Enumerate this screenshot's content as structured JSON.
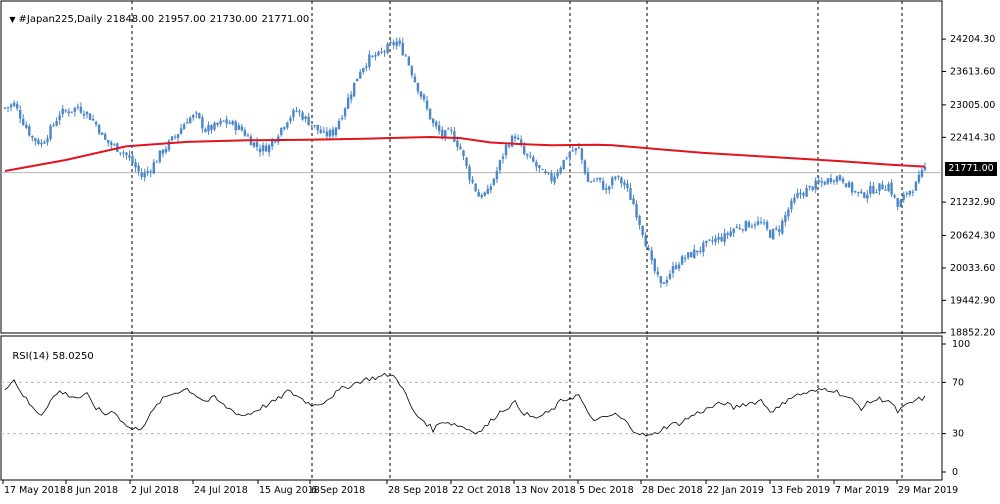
{
  "header": {
    "arrow_icon": "triangle-down-icon",
    "symbol": "#Japan225,Daily",
    "ohlc": [
      "21848.00",
      "21957.00",
      "21730.00",
      "21771.00"
    ]
  },
  "rsi_header": {
    "name": "RSI(14)",
    "value": "58.0250"
  },
  "current_price_label": "21771.00",
  "colors": {
    "candle": "#4a86c8",
    "ma": "#e0141e",
    "rsi_line": "#000000",
    "grid": "#000000",
    "price_tag_bg": "#000000"
  },
  "chart_data": [
    {
      "type": "candlestick",
      "title": "#Japan225,Daily",
      "ohlc_last": {
        "open": 21848.0,
        "high": 21957.0,
        "low": 21730.0,
        "close": 21771.0
      },
      "x_tick_labels": [
        "17 May 2018",
        "8 Jun 2018",
        "2 Jul 2018",
        "24 Jul 2018",
        "15 Aug 2018",
        "6 Sep 2018",
        "28 Sep 2018",
        "22 Oct 2018",
        "13 Nov 2018",
        "5 Dec 2018",
        "28 Dec 2018",
        "22 Jan 2019",
        "13 Feb 2019",
        "7 Mar 2019",
        "29 Mar 2019"
      ],
      "y_tick_labels": [
        "24204.30",
        "23613.60",
        "23005.00",
        "22414.30",
        "21232.90",
        "20624.30",
        "20033.60",
        "19442.90",
        "18852.20"
      ],
      "ylim": [
        18800,
        24400
      ],
      "grid": "vertical dashed",
      "price_series": [
        [
          0,
          22950
        ],
        [
          3,
          23020
        ],
        [
          6,
          22700
        ],
        [
          9,
          22400
        ],
        [
          12,
          22300
        ],
        [
          15,
          22550
        ],
        [
          18,
          22850
        ],
        [
          21,
          22900
        ],
        [
          24,
          22960
        ],
        [
          27,
          22850
        ],
        [
          30,
          22650
        ],
        [
          33,
          22350
        ],
        [
          36,
          22250
        ],
        [
          39,
          22150
        ],
        [
          42,
          21950
        ],
        [
          45,
          21700
        ],
        [
          48,
          21850
        ],
        [
          51,
          22100
        ],
        [
          54,
          22300
        ],
        [
          57,
          22500
        ],
        [
          60,
          22750
        ],
        [
          63,
          22800
        ],
        [
          66,
          22550
        ],
        [
          69,
          22600
        ],
        [
          72,
          22700
        ],
        [
          75,
          22650
        ],
        [
          78,
          22550
        ],
        [
          81,
          22350
        ],
        [
          84,
          22200
        ],
        [
          87,
          22250
        ],
        [
          90,
          22500
        ],
        [
          93,
          22750
        ],
        [
          96,
          22900
        ],
        [
          99,
          22750
        ],
        [
          102,
          22600
        ],
        [
          105,
          22450
        ],
        [
          108,
          22500
        ],
        [
          111,
          22850
        ],
        [
          114,
          23250
        ],
        [
          117,
          23650
        ],
        [
          120,
          23850
        ],
        [
          123,
          23900
        ],
        [
          126,
          24050
        ],
        [
          129,
          24150
        ],
        [
          132,
          23900
        ],
        [
          135,
          23450
        ],
        [
          138,
          23050
        ],
        [
          141,
          22650
        ],
        [
          144,
          22450
        ],
        [
          147,
          22500
        ],
        [
          150,
          22200
        ],
        [
          153,
          21700
        ],
        [
          156,
          21350
        ],
        [
          159,
          21400
        ],
        [
          162,
          21800
        ],
        [
          165,
          22250
        ],
        [
          168,
          22450
        ],
        [
          171,
          22100
        ],
        [
          174,
          21950
        ],
        [
          177,
          21750
        ],
        [
          180,
          21650
        ],
        [
          183,
          21900
        ],
        [
          186,
          22150
        ],
        [
          189,
          22200
        ],
        [
          192,
          21600
        ],
        [
          195,
          21650
        ],
        [
          198,
          21450
        ],
        [
          201,
          21700
        ],
        [
          204,
          21550
        ],
        [
          207,
          21200
        ],
        [
          210,
          20700
        ],
        [
          213,
          20100
        ],
        [
          216,
          19700
        ],
        [
          219,
          19950
        ],
        [
          222,
          20150
        ],
        [
          225,
          20250
        ],
        [
          228,
          20350
        ],
        [
          231,
          20450
        ],
        [
          234,
          20550
        ],
        [
          237,
          20600
        ],
        [
          240,
          20750
        ],
        [
          243,
          20800
        ],
        [
          246,
          20850
        ],
        [
          249,
          20850
        ],
        [
          252,
          20650
        ],
        [
          255,
          20750
        ],
        [
          258,
          21100
        ],
        [
          261,
          21350
        ],
        [
          264,
          21450
        ],
        [
          267,
          21550
        ],
        [
          270,
          21600
        ],
        [
          273,
          21700
        ],
        [
          276,
          21650
        ],
        [
          279,
          21450
        ],
        [
          282,
          21350
        ],
        [
          285,
          21450
        ],
        [
          288,
          21500
        ],
        [
          291,
          21550
        ],
        [
          294,
          21150
        ],
        [
          297,
          21400
        ],
        [
          300,
          21550
        ],
        [
          303,
          21850
        ]
      ],
      "moving_average": [
        [
          0,
          21800
        ],
        [
          20,
          22000
        ],
        [
          40,
          22250
        ],
        [
          60,
          22330
        ],
        [
          80,
          22360
        ],
        [
          100,
          22370
        ],
        [
          120,
          22390
        ],
        [
          140,
          22420
        ],
        [
          150,
          22400
        ],
        [
          160,
          22320
        ],
        [
          170,
          22290
        ],
        [
          180,
          22270
        ],
        [
          195,
          22280
        ],
        [
          200,
          22270
        ],
        [
          215,
          22200
        ],
        [
          230,
          22130
        ],
        [
          245,
          22080
        ],
        [
          260,
          22030
        ],
        [
          275,
          21980
        ],
        [
          290,
          21920
        ],
        [
          303,
          21880
        ]
      ],
      "last_price_line": 21771.0
    },
    {
      "type": "line",
      "title": "RSI(14) 58.0250",
      "series_label": "RSI(14)",
      "current_value": 58.025,
      "y_tick_labels": [
        "100",
        "70",
        "30",
        "0"
      ],
      "ylim": [
        0,
        100
      ],
      "levels": [
        70,
        30
      ],
      "values": [
        [
          0,
          66
        ],
        [
          3,
          72
        ],
        [
          6,
          60
        ],
        [
          9,
          50
        ],
        [
          12,
          45
        ],
        [
          15,
          56
        ],
        [
          18,
          63
        ],
        [
          21,
          60
        ],
        [
          24,
          58
        ],
        [
          27,
          60
        ],
        [
          30,
          50
        ],
        [
          33,
          45
        ],
        [
          36,
          48
        ],
        [
          39,
          38
        ],
        [
          42,
          33
        ],
        [
          45,
          35
        ],
        [
          48,
          45
        ],
        [
          51,
          55
        ],
        [
          54,
          60
        ],
        [
          57,
          63
        ],
        [
          60,
          65
        ],
        [
          63,
          60
        ],
        [
          66,
          55
        ],
        [
          69,
          58
        ],
        [
          72,
          52
        ],
        [
          75,
          48
        ],
        [
          78,
          44
        ],
        [
          81,
          46
        ],
        [
          84,
          50
        ],
        [
          87,
          53
        ],
        [
          90,
          57
        ],
        [
          93,
          63
        ],
        [
          96,
          60
        ],
        [
          99,
          55
        ],
        [
          102,
          52
        ],
        [
          105,
          55
        ],
        [
          108,
          60
        ],
        [
          111,
          65
        ],
        [
          114,
          68
        ],
        [
          117,
          71
        ],
        [
          120,
          73
        ],
        [
          123,
          74
        ],
        [
          126,
          76
        ],
        [
          129,
          74
        ],
        [
          132,
          60
        ],
        [
          135,
          45
        ],
        [
          138,
          40
        ],
        [
          141,
          33
        ],
        [
          144,
          40
        ],
        [
          147,
          38
        ],
        [
          150,
          36
        ],
        [
          153,
          33
        ],
        [
          156,
          31
        ],
        [
          159,
          37
        ],
        [
          162,
          45
        ],
        [
          165,
          50
        ],
        [
          168,
          54
        ],
        [
          171,
          46
        ],
        [
          174,
          42
        ],
        [
          177,
          44
        ],
        [
          180,
          48
        ],
        [
          183,
          55
        ],
        [
          186,
          58
        ],
        [
          189,
          60
        ],
        [
          192,
          45
        ],
        [
          195,
          40
        ],
        [
          198,
          43
        ],
        [
          201,
          45
        ],
        [
          204,
          40
        ],
        [
          207,
          33
        ],
        [
          210,
          29
        ],
        [
          213,
          28
        ],
        [
          216,
          33
        ],
        [
          219,
          37
        ],
        [
          222,
          38
        ],
        [
          225,
          42
        ],
        [
          228,
          46
        ],
        [
          231,
          49
        ],
        [
          234,
          52
        ],
        [
          237,
          54
        ],
        [
          240,
          50
        ],
        [
          243,
          53
        ],
        [
          246,
          54
        ],
        [
          249,
          56
        ],
        [
          252,
          48
        ],
        [
          255,
          50
        ],
        [
          258,
          58
        ],
        [
          261,
          60
        ],
        [
          264,
          62
        ],
        [
          267,
          63
        ],
        [
          270,
          65
        ],
        [
          273,
          64
        ],
        [
          276,
          60
        ],
        [
          279,
          56
        ],
        [
          282,
          50
        ],
        [
          285,
          55
        ],
        [
          288,
          57
        ],
        [
          291,
          56
        ],
        [
          294,
          47
        ],
        [
          297,
          52
        ],
        [
          300,
          56
        ],
        [
          303,
          58
        ]
      ]
    }
  ]
}
